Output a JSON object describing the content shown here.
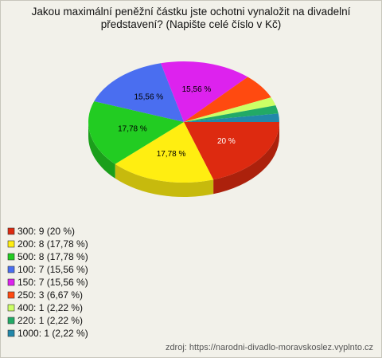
{
  "chart_data": {
    "type": "pie",
    "title": "Jakou maximální peněžní částku jste ochotni vynaložit na divadelní představení? (Napište celé číslo v Kč)",
    "categories": [
      "300: 9 (20 %)",
      "200: 8 (17,78 %)",
      "500: 8 (17,78 %)",
      "100: 7 (15,56 %)",
      "150: 7 (15,56 %)",
      "250: 3 (6,67 %)",
      "400: 1 (2,22 %)",
      "220: 1 (2,22 %)",
      "1000: 1 (2,22 %)"
    ],
    "values": [
      20,
      17.78,
      17.78,
      15.56,
      15.56,
      6.67,
      2.22,
      2.22,
      2.22
    ],
    "value_labels": [
      "20 %",
      "17,78 %",
      "17,78 %",
      "15,56 %",
      "15,56 %",
      null,
      null,
      null,
      null
    ],
    "colors": [
      "#dd2a10",
      "#ffee11",
      "#22cc22",
      "#4a6ef0",
      "#dd22ee",
      "#ff4a10",
      "#ccff66",
      "#22aa66",
      "#2288aa"
    ],
    "source": "zdroj: https://narodni-divadlo-moravskoslez.vyplnto.cz"
  }
}
